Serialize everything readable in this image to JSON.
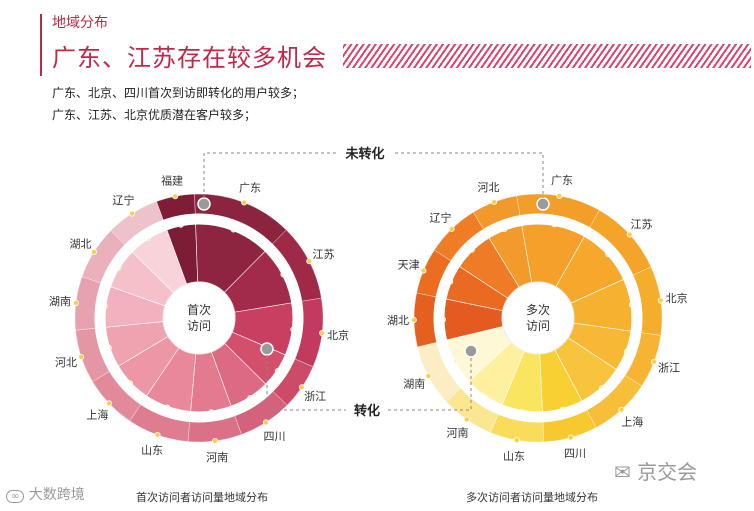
{
  "header": {
    "category": "地域分布",
    "title": "广东、江苏存在较多机会",
    "bullets": [
      "广东、北京、四川首次到访即转化的用户较多；",
      "广东、江苏、北京优质潜在客户较多；"
    ]
  },
  "annotations": {
    "unconverted": "未转化",
    "converted": "转化"
  },
  "chart_data": [
    {
      "type": "pie",
      "title": "首次访问者访问量地域分布",
      "center_label": [
        "首次",
        "访问"
      ],
      "categories": [
        "福建",
        "广东",
        "江苏",
        "北京",
        "浙江",
        "四川",
        "河南",
        "山东",
        "上海",
        "河北",
        "湖南",
        "湖北",
        "辽宁"
      ],
      "values": [
        5,
        13,
        10,
        9,
        6,
        7,
        7,
        8,
        7,
        7,
        7,
        7,
        7
      ],
      "colors": [
        "#7d1d35",
        "#8e2540",
        "#a32b4a",
        "#c93f62",
        "#d3506d",
        "#dd6a84",
        "#e37a8f",
        "#e8889a",
        "#ec96a6",
        "#efa3b1",
        "#f2b1bd",
        "#f5c0ca",
        "#f8d4da"
      ],
      "outer_ring_color": "#8a1f3c",
      "center_color": "#ffffff"
    },
    {
      "type": "pie",
      "title": "多次访问者访问量地域分布",
      "center_label": [
        "多次",
        "访问"
      ],
      "categories": [
        "河北",
        "广东",
        "江苏",
        "北京",
        "浙江",
        "上海",
        "四川",
        "山东",
        "河南",
        "湖南",
        "湖北",
        "天津",
        "辽宁"
      ],
      "values": [
        6,
        11,
        10,
        9,
        7,
        8,
        7,
        7,
        7,
        8,
        7,
        6,
        7
      ],
      "colors": [
        "#f39a2d",
        "#f4a02a",
        "#f5a82b",
        "#f6b12e",
        "#f7b935",
        "#f8c33d",
        "#f9d031",
        "#fae560",
        "#fdf09f",
        "#fff8d6",
        "#e45a20",
        "#ea6a22",
        "#ef7b27"
      ],
      "outer_ring_color": "#f0901e",
      "center_color": "#ffffff"
    }
  ],
  "footer": {
    "left_watermark": "大数跨境",
    "right_watermark": "京交会"
  }
}
